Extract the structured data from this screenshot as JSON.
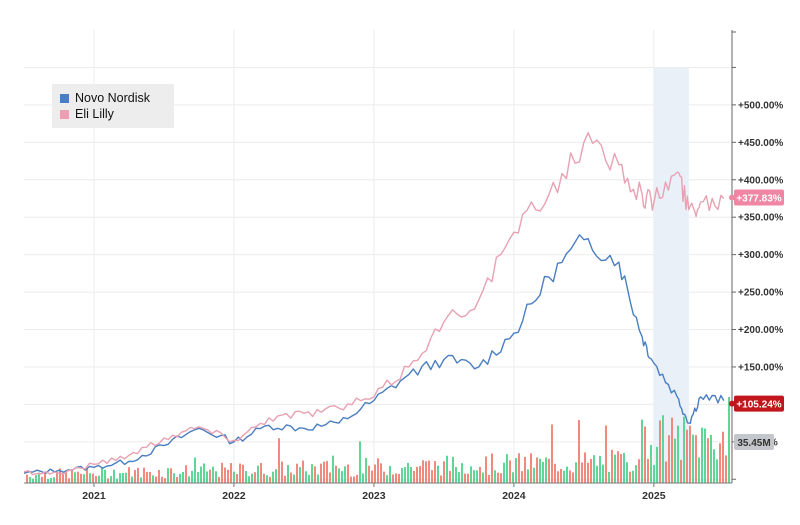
{
  "legend": {
    "novo": {
      "label": "Novo Nordisk",
      "color": "#4a7ec0"
    },
    "lilly": {
      "label": "Eli Lilly",
      "color": "#e7a1b2"
    }
  },
  "chart_data": {
    "type": "line",
    "title": "",
    "xlabel": "",
    "ylabel": "",
    "x_ticks": [
      "2021",
      "2022",
      "2023",
      "2024",
      "2025"
    ],
    "y_ticks": [
      "+50.00%",
      "+100.00%",
      "+150.00%",
      "+200.00%",
      "+250.00%",
      "+300.00%",
      "+350.00%",
      "+400.00%",
      "+450.00%",
      "+500.00%"
    ],
    "ylim": [
      -5,
      600
    ],
    "grid": true,
    "legend_position": "top-left",
    "highlight_band": {
      "from": "2025-01",
      "to": "2025-04"
    },
    "series": [
      {
        "name": "Novo Nordisk",
        "color": "#4a7ec0",
        "current_label": "+105.24%",
        "points": [
          [
            "2020-07",
            8
          ],
          [
            "2020-10",
            12
          ],
          [
            "2021-01",
            16
          ],
          [
            "2021-04",
            24
          ],
          [
            "2021-07",
            45
          ],
          [
            "2021-10",
            68
          ],
          [
            "2022-01",
            50
          ],
          [
            "2022-04",
            72
          ],
          [
            "2022-07",
            68
          ],
          [
            "2022-10",
            75
          ],
          [
            "2023-01",
            105
          ],
          [
            "2023-04",
            140
          ],
          [
            "2023-07",
            160
          ],
          [
            "2023-10",
            150
          ],
          [
            "2024-01",
            195
          ],
          [
            "2024-04",
            270
          ],
          [
            "2024-07",
            320
          ],
          [
            "2024-10",
            290
          ],
          [
            "2024-12",
            190
          ],
          [
            "2025-01",
            155
          ],
          [
            "2025-03",
            110
          ],
          [
            "2025-04",
            75
          ],
          [
            "2025-05",
            110
          ],
          [
            "2025-07",
            105
          ]
        ]
      },
      {
        "name": "Eli Lilly",
        "color": "#e7a1b2",
        "current_label": "+377.83%",
        "points": [
          [
            "2020-07",
            10
          ],
          [
            "2020-10",
            8
          ],
          [
            "2021-01",
            20
          ],
          [
            "2021-04",
            32
          ],
          [
            "2021-07",
            55
          ],
          [
            "2021-10",
            70
          ],
          [
            "2022-01",
            52
          ],
          [
            "2022-04",
            82
          ],
          [
            "2022-07",
            88
          ],
          [
            "2022-10",
            95
          ],
          [
            "2023-01",
            110
          ],
          [
            "2023-04",
            150
          ],
          [
            "2023-07",
            210
          ],
          [
            "2023-10",
            240
          ],
          [
            "2024-01",
            330
          ],
          [
            "2024-04",
            380
          ],
          [
            "2024-07",
            450
          ],
          [
            "2024-10",
            420
          ],
          [
            "2024-12",
            380
          ],
          [
            "2025-01",
            370
          ],
          [
            "2025-03",
            410
          ],
          [
            "2025-04",
            360
          ],
          [
            "2025-05",
            370
          ],
          [
            "2025-07",
            375
          ]
        ]
      }
    ],
    "volume": {
      "label": "35.45M",
      "up_color": "#4fd18b",
      "down_color": "#ef7d6e"
    }
  }
}
